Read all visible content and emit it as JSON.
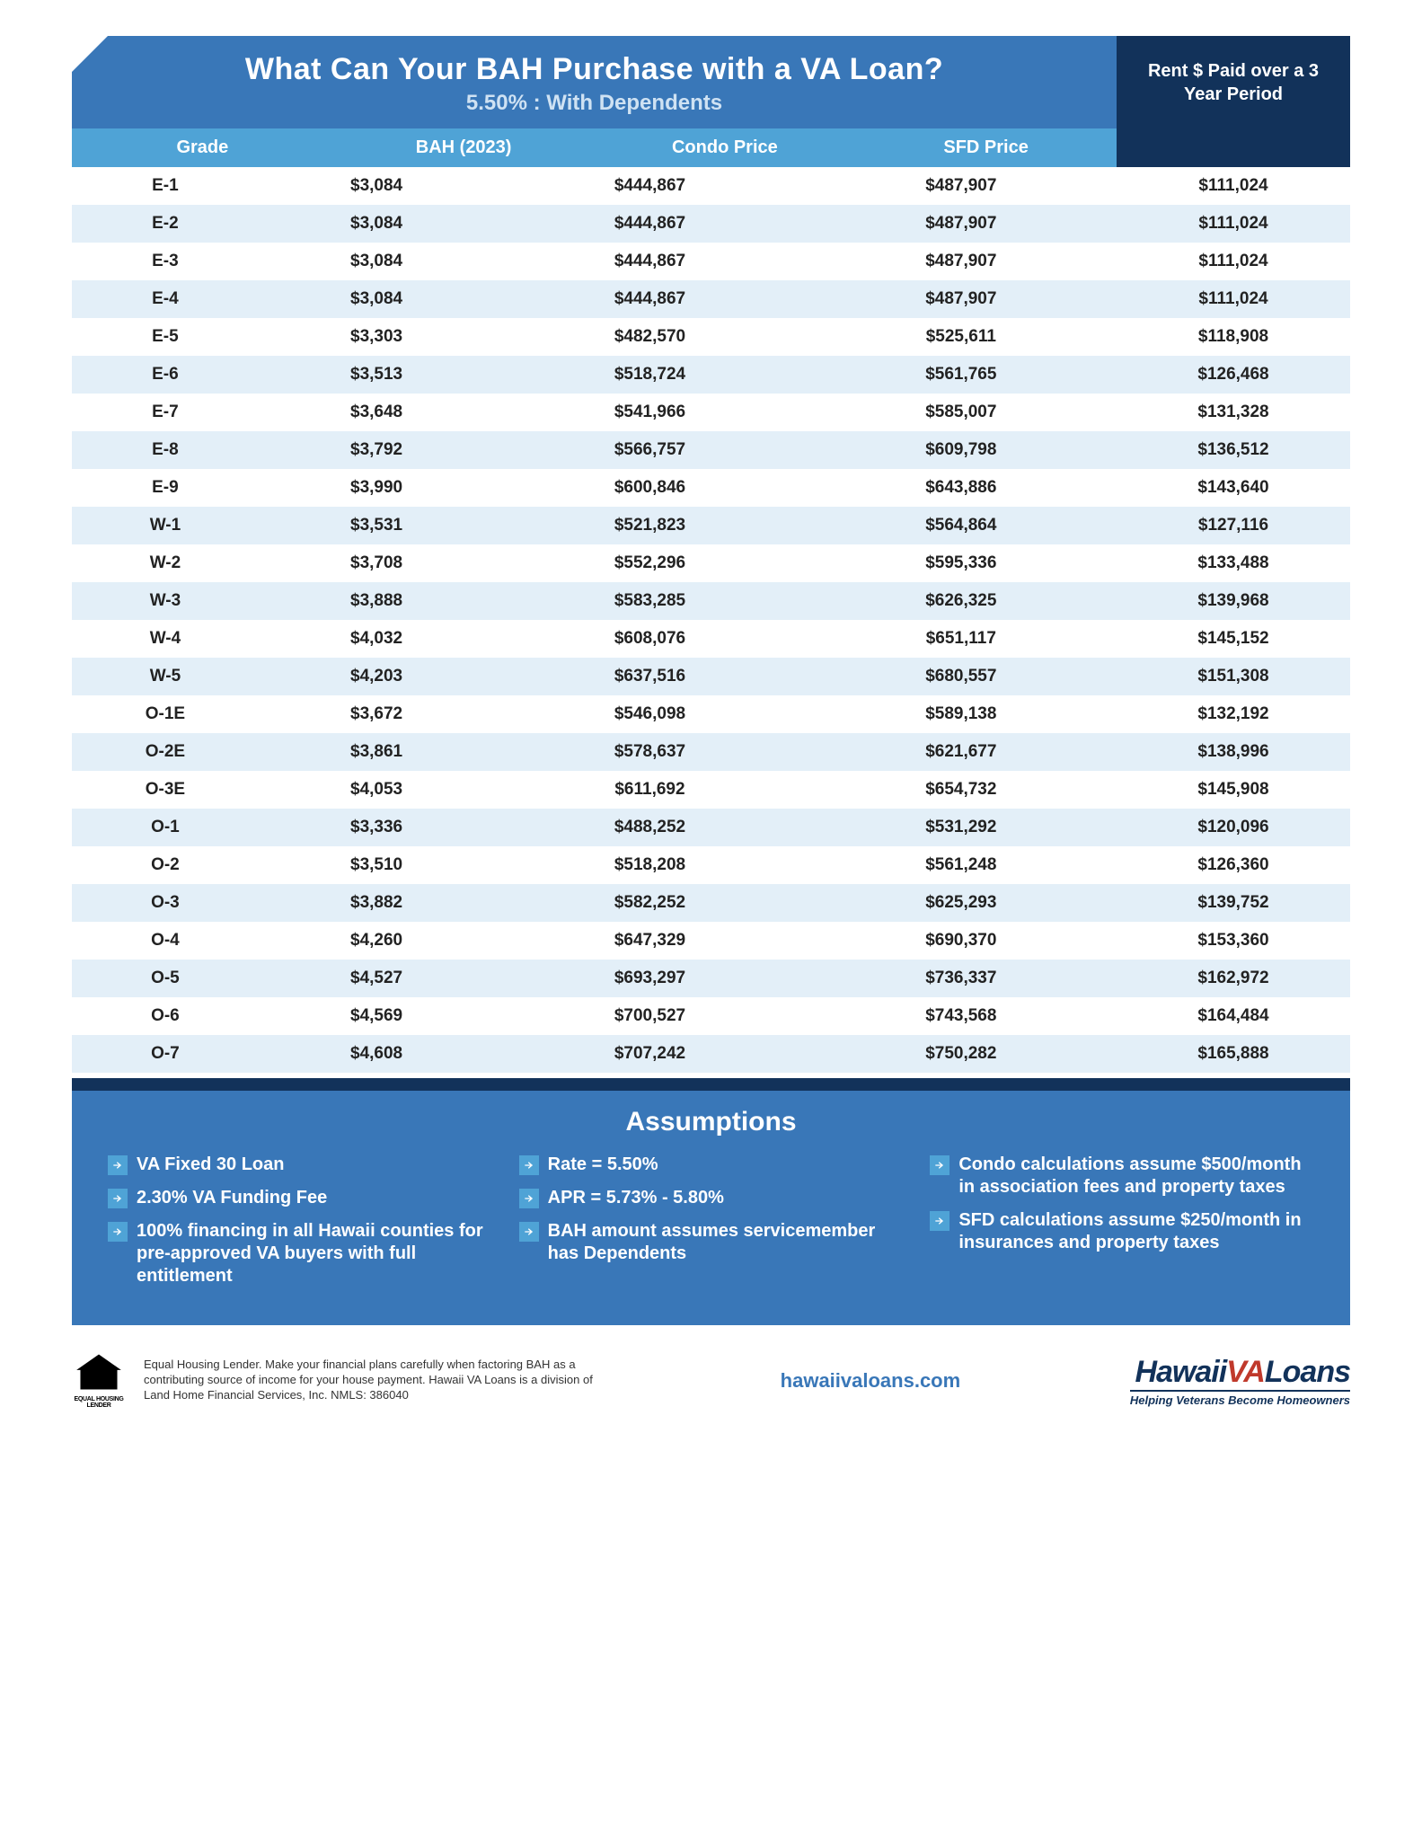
{
  "header": {
    "title": "What Can Your BAH Purchase with a VA Loan?",
    "subtitle": "5.50% : With Dependents",
    "side": "Rent $ Paid over a 3 Year Period"
  },
  "columns": [
    "Grade",
    "BAH (2023)",
    "Condo Price",
    "SFD Price"
  ],
  "rows": [
    [
      "E-1",
      "$3,084",
      "$444,867",
      "$487,907",
      "$111,024"
    ],
    [
      "E-2",
      "$3,084",
      "$444,867",
      "$487,907",
      "$111,024"
    ],
    [
      "E-3",
      "$3,084",
      "$444,867",
      "$487,907",
      "$111,024"
    ],
    [
      "E-4",
      "$3,084",
      "$444,867",
      "$487,907",
      "$111,024"
    ],
    [
      "E-5",
      "$3,303",
      "$482,570",
      "$525,611",
      "$118,908"
    ],
    [
      "E-6",
      "$3,513",
      "$518,724",
      "$561,765",
      "$126,468"
    ],
    [
      "E-7",
      "$3,648",
      "$541,966",
      "$585,007",
      "$131,328"
    ],
    [
      "E-8",
      "$3,792",
      "$566,757",
      "$609,798",
      "$136,512"
    ],
    [
      "E-9",
      "$3,990",
      "$600,846",
      "$643,886",
      "$143,640"
    ],
    [
      "W-1",
      "$3,531",
      "$521,823",
      "$564,864",
      "$127,116"
    ],
    [
      "W-2",
      "$3,708",
      "$552,296",
      "$595,336",
      "$133,488"
    ],
    [
      "W-3",
      "$3,888",
      "$583,285",
      "$626,325",
      "$139,968"
    ],
    [
      "W-4",
      "$4,032",
      "$608,076",
      "$651,117",
      "$145,152"
    ],
    [
      "W-5",
      "$4,203",
      "$637,516",
      "$680,557",
      "$151,308"
    ],
    [
      "O-1E",
      "$3,672",
      "$546,098",
      "$589,138",
      "$132,192"
    ],
    [
      "O-2E",
      "$3,861",
      "$578,637",
      "$621,677",
      "$138,996"
    ],
    [
      "O-3E",
      "$4,053",
      "$611,692",
      "$654,732",
      "$145,908"
    ],
    [
      "O-1",
      "$3,336",
      "$488,252",
      "$531,292",
      "$120,096"
    ],
    [
      "O-2",
      "$3,510",
      "$518,208",
      "$561,248",
      "$126,360"
    ],
    [
      "O-3",
      "$3,882",
      "$582,252",
      "$625,293",
      "$139,752"
    ],
    [
      "O-4",
      "$4,260",
      "$647,329",
      "$690,370",
      "$153,360"
    ],
    [
      "O-5",
      "$4,527",
      "$693,297",
      "$736,337",
      "$162,972"
    ],
    [
      "O-6",
      "$4,569",
      "$700,527",
      "$743,568",
      "$164,484"
    ],
    [
      "O-7",
      "$4,608",
      "$707,242",
      "$750,282",
      "$165,888"
    ]
  ],
  "assumptions": {
    "title": "Assumptions",
    "col1": [
      "VA Fixed 30 Loan",
      "2.30% VA Funding Fee",
      "100% financing in all Hawaii counties for pre-approved VA buyers with full entitlement"
    ],
    "col2": [
      "Rate = 5.50%",
      "APR = 5.73% - 5.80%",
      "BAH amount assumes servicemember has Dependents"
    ],
    "col3": [
      "Condo calculations assume $500/month in association fees and property taxes",
      "SFD calculations assume $250/month in insurances and property taxes"
    ]
  },
  "footer": {
    "ehl_label": "EQUAL HOUSING LENDER",
    "disclaimer": "Equal Housing Lender.  Make your financial plans carefully when factoring BAH as a contributing source of income for your house payment.  Hawaii VA Loans is a division of Land Home Financial Services, Inc.  NMLS: 386040",
    "url": "hawaiivaloans.com",
    "logo_hawaii": "Hawaii",
    "logo_va": "VA",
    "logo_loans": "Loans",
    "logo_tag": "Helping Veterans Become Homeowners"
  },
  "colors": {
    "header_bg": "#3977b8",
    "dark_bg": "#12325a",
    "lightblue": "#4fa3d6",
    "row_alt": "#e3eff8"
  }
}
